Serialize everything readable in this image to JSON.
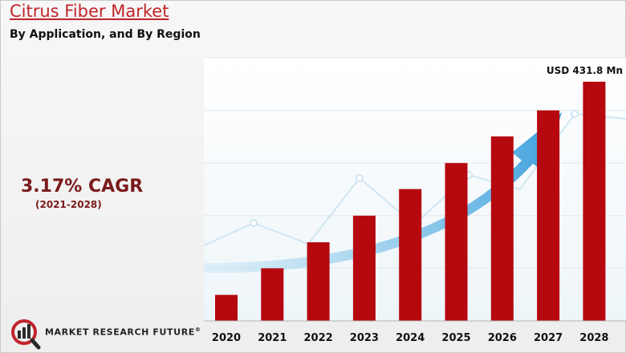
{
  "header": {
    "title": "Citrus Fiber Market",
    "subtitle": "By Application, and By Region"
  },
  "cagr": {
    "value": "3.17% CAGR",
    "period": "(2021-2028)"
  },
  "logo": {
    "text": "MARKET RESEARCH FUTURE",
    "trademark": "®"
  },
  "colors": {
    "bar": "#b5080f",
    "title": "#c0252a",
    "arrow": "#4aa8e0"
  },
  "chart_data": {
    "type": "bar",
    "categories": [
      "2020",
      "2021",
      "2022",
      "2023",
      "2024",
      "2025",
      "2026",
      "2027",
      "2028"
    ],
    "values": [
      47,
      95,
      142,
      190,
      238,
      285,
      333,
      380,
      431.8
    ],
    "annotation": "USD 431.8 Mn",
    "title": "Citrus Fiber Market",
    "xlabel": "",
    "ylabel": "",
    "ylim": [
      0,
      475
    ],
    "grid": true,
    "legend": "none"
  }
}
